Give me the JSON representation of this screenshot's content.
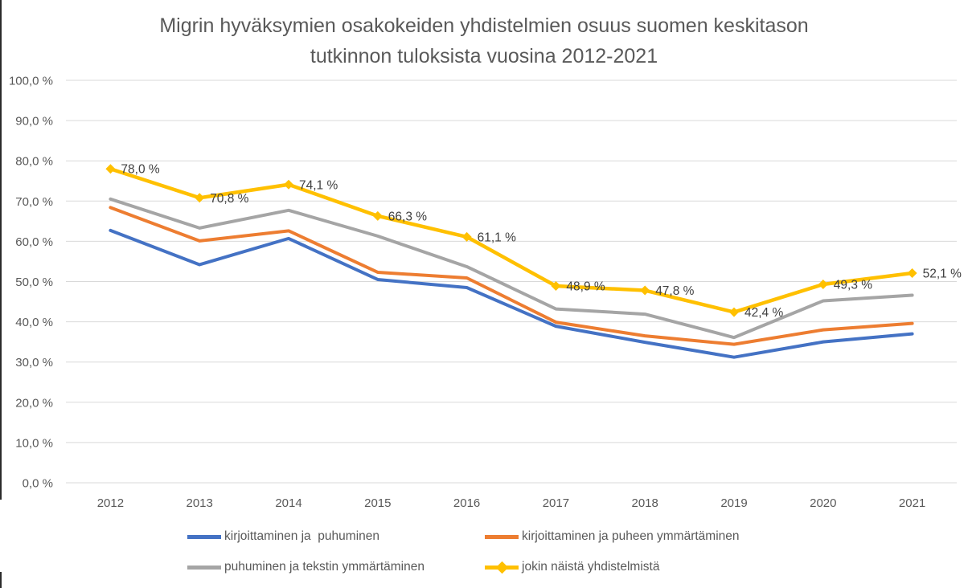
{
  "title": {
    "line1": "Migrin hyväksymien osakokeiden yhdistelmien osuus suomen keskitason",
    "line2": "tutkinnon tuloksista vuosina 2012-2021",
    "full": "Migrin hyväksymien osakokeiden yhdistelmien osuus suomen keskitason tutkinnon tuloksista vuosina 2012-2021"
  },
  "chart_data": {
    "type": "line",
    "categories": [
      "2012",
      "2013",
      "2014",
      "2015",
      "2016",
      "2017",
      "2018",
      "2019",
      "2020",
      "2021"
    ],
    "series": [
      {
        "name": "kirjoittaminen ja  puhuminen",
        "color": "#4472C4",
        "values": [
          62.7,
          54.2,
          60.7,
          50.5,
          48.5,
          38.9,
          34.9,
          31.2,
          35.0,
          37.0
        ]
      },
      {
        "name": "kirjoittaminen ja puheen ymmärtäminen",
        "color": "#ED7D31",
        "values": [
          68.4,
          60.1,
          62.6,
          52.3,
          50.9,
          39.9,
          36.5,
          34.4,
          38.0,
          39.6
        ]
      },
      {
        "name": "puhuminen ja tekstin ymmärtäminen",
        "color": "#A5A5A5",
        "values": [
          70.5,
          63.3,
          67.7,
          61.3,
          53.7,
          43.2,
          41.9,
          36.1,
          45.2,
          46.6
        ]
      },
      {
        "name": "jokin näistä yhdistelmistä",
        "color": "#FFC000",
        "marker": "diamond",
        "values": [
          78.0,
          70.8,
          74.1,
          66.3,
          61.1,
          48.9,
          47.8,
          42.4,
          49.3,
          52.1
        ],
        "data_labels": [
          "78,0 %",
          "70,8 %",
          "74,1 %",
          "66,3 %",
          "61,1 %",
          "48,9 %",
          "47,8 %",
          "42,4 %",
          "49,3 %",
          "52,1 %"
        ]
      }
    ],
    "y_ticks": [
      "0,0 %",
      "10,0 %",
      "20,0 %",
      "30,0 %",
      "40,0 %",
      "50,0 %",
      "60,0 %",
      "70,0 %",
      "80,0 %",
      "90,0 %",
      "100,0 %"
    ],
    "ylim": [
      0,
      100
    ],
    "xlabel": "",
    "ylabel": "",
    "grid": true,
    "legend_position": "bottom"
  },
  "colors": {
    "grid_line": "#D9D9D9",
    "axis_text": "#595959",
    "data_label_text": "#404040",
    "title_text": "#595959",
    "background": "#FFFFFF"
  }
}
